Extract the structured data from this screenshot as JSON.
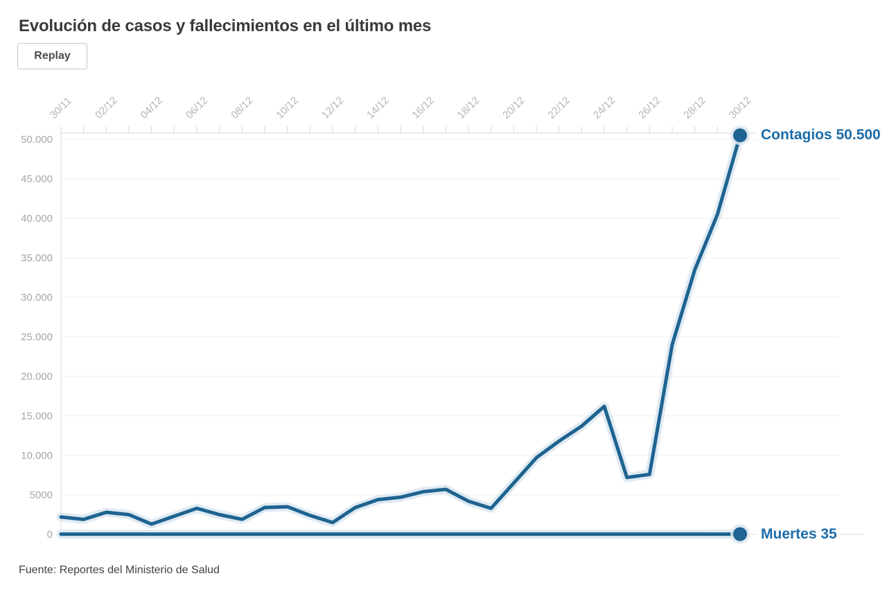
{
  "page": {
    "title": "Evolución de casos y fallecimientos en el último mes",
    "replay_button": "Replay",
    "source": "Fuente: Reportes del Ministerio de Salud"
  },
  "colors": {
    "line": "#1e6391",
    "halo": "#d9e6f0",
    "label_blue": "#1b6ca8",
    "grid": "#ededed",
    "axis": "#d9d9d9",
    "x_tick_label": "#b4b4b4",
    "y_tick_label": "#a6a6a6",
    "title_text": "#3a3a3a"
  },
  "chart_data": {
    "type": "line",
    "title": "Evolución de casos y fallecimientos en el último mes",
    "x_axis_position": "top",
    "grid": "horizontal",
    "legend_position": "end-of-line",
    "x": [
      "30/11",
      "01/12",
      "02/12",
      "03/12",
      "04/12",
      "05/12",
      "06/12",
      "07/12",
      "08/12",
      "09/12",
      "10/12",
      "11/12",
      "12/12",
      "13/12",
      "14/12",
      "15/12",
      "16/12",
      "17/12",
      "18/12",
      "19/12",
      "20/12",
      "21/12",
      "22/12",
      "23/12",
      "24/12",
      "25/12",
      "26/12",
      "27/12",
      "28/12",
      "29/12",
      "30/12"
    ],
    "x_tick_labels_shown": [
      "30/11",
      "02/12",
      "04/12",
      "06/12",
      "08/12",
      "10/12",
      "12/12",
      "14/12",
      "16/12",
      "18/12",
      "20/12",
      "22/12",
      "24/12",
      "26/12",
      "28/12",
      "30/12"
    ],
    "ylim": [
      0,
      50000
    ],
    "y_ticks": [
      "50.000",
      "45.000",
      "40.000",
      "35.000",
      "30.000",
      "25.000",
      "20.000",
      "15.000",
      "10.000",
      "5000",
      "0"
    ],
    "series": [
      {
        "name": "Contagios",
        "end_label": "Contagios 50.500",
        "end_value": 50500,
        "values": [
          2200,
          1900,
          2800,
          2500,
          1300,
          2300,
          3300,
          2500,
          1900,
          3400,
          3500,
          2400,
          1500,
          3400,
          4400,
          4700,
          5400,
          5700,
          4200,
          3300,
          6500,
          9700,
          11800,
          13700,
          16200,
          7200,
          7600,
          24000,
          33500,
          40500,
          50500
        ]
      },
      {
        "name": "Muertes",
        "end_label": "Muertes 35",
        "end_value": 35,
        "values": [
          35,
          35,
          35,
          35,
          35,
          35,
          35,
          35,
          35,
          35,
          35,
          35,
          35,
          35,
          35,
          35,
          35,
          35,
          35,
          35,
          35,
          35,
          35,
          35,
          35,
          35,
          35,
          35,
          35,
          35,
          35
        ]
      }
    ]
  }
}
